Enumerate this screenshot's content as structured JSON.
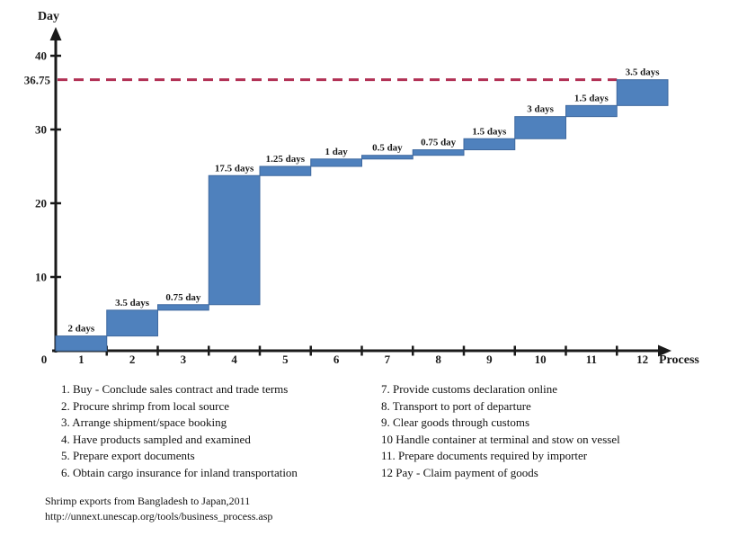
{
  "chart_data": {
    "type": "bar",
    "subtype": "waterfall",
    "title": "",
    "xlabel": "Process",
    "ylabel": "Day",
    "categories": [
      "1",
      "2",
      "3",
      "4",
      "5",
      "6",
      "7",
      "8",
      "9",
      "10",
      "11",
      "12"
    ],
    "durations_days": [
      2,
      3.5,
      0.75,
      17.5,
      1.25,
      1,
      0.5,
      0.75,
      1.5,
      3,
      1.5,
      3.5
    ],
    "cumulative_days": [
      2,
      5.5,
      6.25,
      23.75,
      25,
      26,
      26.5,
      27.25,
      28.75,
      31.75,
      33.25,
      36.75
    ],
    "bar_labels": [
      "2 days",
      "3.5 days",
      "0.75 day",
      "17.5 days",
      "1.25 days",
      "1 day",
      "0.5 day",
      "0.75 day",
      "1.5 days",
      "3 days",
      "1.5 days",
      "3.5 days"
    ],
    "x_tick_labels": [
      "0",
      "1",
      "2",
      "3",
      "4",
      "5",
      "6",
      "7",
      "8",
      "9",
      "10",
      "11",
      "12"
    ],
    "y_ticks": [
      10,
      20,
      30,
      40
    ],
    "ylim": [
      0,
      43
    ],
    "grid": false,
    "bar_color": "#4f81bd",
    "bar_border_color": "#3f699f",
    "axis_color": "#1a1a1a",
    "total_days": 36.75,
    "reference_line": {
      "value": 36.75,
      "label": "36.75",
      "style": "dashed",
      "color": "#b13054"
    }
  },
  "legend": {
    "left": [
      "1. Buy - Conclude sales contract and trade terms",
      "2. Procure shrimp from local source",
      "3. Arrange shipment/space booking",
      "4. Have products sampled and examined",
      "5. Prepare export documents",
      "6. Obtain cargo insurance for inland transportation"
    ],
    "right": [
      "7. Provide customs declaration online",
      "8. Transport to port of departure",
      "9. Clear goods through customs",
      "10 Handle container at terminal and stow on vessel",
      "11. Prepare documents required by importer",
      "12 Pay - Claim payment of goods"
    ]
  },
  "footer": {
    "line1": "Shrimp exports from Bangladesh to Japan,2011",
    "line2": "http://unnext.unescap.org/tools/business_process.asp"
  }
}
